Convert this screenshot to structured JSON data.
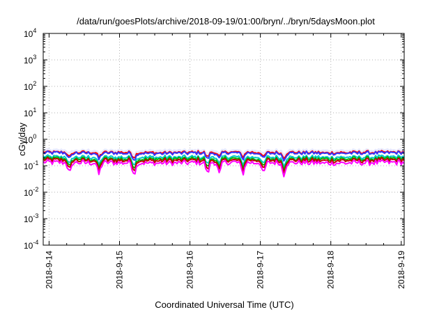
{
  "chart_data": {
    "type": "line",
    "title": "/data/run/goesPlots/archive/2018-09-19/01:00/bryn/../bryn/5daysMoon.plot",
    "xlabel": "Coordinated Universal Time (UTC)",
    "ylabel": "cGy/day",
    "y_scale": "log",
    "ylim": [
      0.0001,
      10000
    ],
    "y_ticks": [
      {
        "value": 0.0001,
        "base": "10",
        "exp": "-4"
      },
      {
        "value": 0.001,
        "base": "10",
        "exp": "-3"
      },
      {
        "value": 0.01,
        "base": "10",
        "exp": "-2"
      },
      {
        "value": 0.1,
        "base": "10",
        "exp": "-1"
      },
      {
        "value": 1,
        "base": "10",
        "exp": "0"
      },
      {
        "value": 10,
        "base": "10",
        "exp": "1"
      },
      {
        "value": 100,
        "base": "10",
        "exp": "2"
      },
      {
        "value": 1000,
        "base": "10",
        "exp": "3"
      },
      {
        "value": 10000,
        "base": "10",
        "exp": "4"
      }
    ],
    "xlim": [
      "2018-09-13T22:00",
      "2018-09-19T01:00"
    ],
    "x_ticks": [
      "2018-9-14",
      "2018-9-15",
      "2018-9-16",
      "2018-9-17",
      "2018-9-18",
      "2018-9-19"
    ],
    "grid": true,
    "x": [
      "2018-09-13T22:00",
      "2018-09-14T12:00",
      "2018-09-15T00:00",
      "2018-09-15T12:00",
      "2018-09-16T00:00",
      "2018-09-16T12:00",
      "2018-09-17T00:00",
      "2018-09-17T12:00",
      "2018-09-18T00:00",
      "2018-09-18T12:00",
      "2018-09-19T01:00"
    ],
    "series": [
      {
        "color": "#e8e8ff",
        "values": [
          0.38,
          0.37,
          0.37,
          0.36,
          0.37,
          0.38,
          0.37,
          0.37,
          0.36,
          0.37,
          0.38
        ]
      },
      {
        "color": "#ff0000",
        "values": [
          0.33,
          0.32,
          0.32,
          0.31,
          0.32,
          0.33,
          0.32,
          0.32,
          0.31,
          0.32,
          0.33
        ]
      },
      {
        "color": "#3333ff",
        "values": [
          0.31,
          0.3,
          0.3,
          0.29,
          0.3,
          0.31,
          0.3,
          0.3,
          0.29,
          0.3,
          0.31
        ]
      },
      {
        "color": "#00c8c8",
        "values": [
          0.22,
          0.21,
          0.21,
          0.21,
          0.21,
          0.22,
          0.21,
          0.21,
          0.21,
          0.21,
          0.22
        ]
      },
      {
        "color": "#00b000",
        "values": [
          0.19,
          0.18,
          0.18,
          0.18,
          0.18,
          0.19,
          0.18,
          0.18,
          0.18,
          0.18,
          0.19
        ]
      },
      {
        "color": "#c00000",
        "values": [
          0.165,
          0.16,
          0.16,
          0.155,
          0.16,
          0.165,
          0.16,
          0.16,
          0.155,
          0.16,
          0.165
        ]
      },
      {
        "color": "#ff00ff",
        "values": [
          0.135,
          0.13,
          0.13,
          0.125,
          0.13,
          0.135,
          0.13,
          0.13,
          0.125,
          0.13,
          0.135
        ]
      }
    ]
  }
}
